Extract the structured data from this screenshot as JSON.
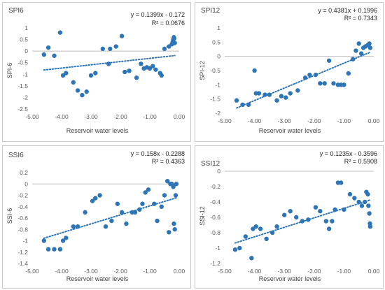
{
  "chart_data": [
    {
      "type": "scatter",
      "title": "SPI6",
      "equation": "y = 0.1399x - 0.172",
      "r2_text": "R² = 0.0676",
      "xlabel": "Reservoir water levels",
      "ylabel": "SPI-6",
      "xlim": [
        -5,
        0
      ],
      "ylim": [
        -2.5,
        1
      ],
      "xticks": [
        -5,
        -4,
        -3,
        -2,
        -1,
        0
      ],
      "xtick_labels": [
        "-5.00",
        "-4.00",
        "-3.00",
        "-2.00",
        "-1.00",
        "0.00"
      ],
      "yticks": [
        -2.5,
        -2,
        -1.5,
        -1,
        -0.5,
        0,
        0.5,
        1
      ],
      "ytick_labels": [
        "-2.5",
        "-2",
        "-1.5",
        "-1",
        "-0.5",
        "0",
        "0.5",
        "1"
      ],
      "trendline": {
        "slope": 0.1399,
        "intercept": -0.172
      },
      "x": [
        -4.6,
        -4.45,
        -4.25,
        -4.05,
        -3.95,
        -3.85,
        -3.6,
        -3.45,
        -3.3,
        -3.15,
        -3.0,
        -2.85,
        -2.6,
        -2.4,
        -2.35,
        -2.15,
        -1.95,
        -1.85,
        -1.7,
        -1.45,
        -1.3,
        -1.2,
        -1.1,
        -1.0,
        -0.9,
        -0.8,
        -0.65,
        -0.6,
        -0.5,
        -0.35,
        -0.25,
        -0.22,
        -0.2,
        -0.18,
        -0.17,
        -0.15
      ],
      "y": [
        -0.15,
        0.15,
        -0.2,
        0.8,
        -1.05,
        -0.95,
        -1.35,
        -1.7,
        -1.9,
        -1.75,
        -1.05,
        -0.95,
        0.1,
        -0.55,
        0.1,
        0.2,
        0.65,
        -0.9,
        -0.85,
        -1.15,
        -0.55,
        -0.75,
        -0.7,
        -0.75,
        -0.65,
        -0.8,
        -0.95,
        -1.05,
        0.1,
        0.2,
        0.3,
        0.4,
        0.5,
        0.6,
        0.55,
        0.35
      ]
    },
    {
      "type": "scatter",
      "title": "SPI12",
      "equation": "y = 0.4381x + 0.1996",
      "r2_text": "R² = 0.7343",
      "xlabel": "Reservoir water levels",
      "ylabel": "SPI-12",
      "xlim": [
        -5,
        0
      ],
      "ylim": [
        -2,
        1
      ],
      "xticks": [
        -5,
        -4,
        -3,
        -2,
        -1,
        0
      ],
      "xtick_labels": [
        "-5.00",
        "-4.00",
        "-3.00",
        "-2.00",
        "-1.00",
        "0.00"
      ],
      "yticks": [
        -2,
        -1.5,
        -1,
        -0.5,
        0,
        0.5,
        1
      ],
      "ytick_labels": [
        "-2",
        "-1.5",
        "-1",
        "-0.5",
        "0",
        "0.5",
        "1"
      ],
      "trendline": {
        "slope": 0.4381,
        "intercept": 0.1996
      },
      "x": [
        -4.6,
        -4.4,
        -4.2,
        -4.0,
        -3.95,
        -3.85,
        -3.65,
        -3.5,
        -3.25,
        -3.1,
        -2.95,
        -2.8,
        -2.55,
        -2.3,
        -2.15,
        -1.95,
        -1.8,
        -1.65,
        -1.5,
        -1.35,
        -1.2,
        -1.1,
        -1.0,
        -0.85,
        -0.7,
        -0.6,
        -0.5,
        -0.42,
        -0.35,
        -0.28,
        -0.2,
        -0.15,
        -0.12
      ],
      "y": [
        -1.55,
        -1.7,
        -1.7,
        -0.5,
        -1.3,
        -1.3,
        -1.35,
        -1.35,
        -1.55,
        -1.4,
        -1.45,
        -1.3,
        -1.2,
        -0.75,
        -0.65,
        -0.65,
        -0.95,
        -0.95,
        -0.15,
        -0.95,
        -1.0,
        -1.0,
        -1.0,
        -0.6,
        -0.1,
        0.2,
        0.45,
        0.1,
        0.3,
        0.35,
        0.4,
        0.45,
        0.3
      ]
    },
    {
      "type": "scatter",
      "title": "SSI6",
      "equation": "y = 0.158x - 0.2288",
      "r2_text": "R² = 0.4363",
      "xlabel": "Reservoir water levels",
      "ylabel": "SSI-6",
      "xlim": [
        -5,
        0
      ],
      "ylim": [
        -1.4,
        0.2
      ],
      "xticks": [
        -5,
        -4,
        -3,
        -2,
        -1,
        0
      ],
      "xtick_labels": [
        "-5.00",
        "-4.00",
        "-3.00",
        "-2.00",
        "-1.00",
        "0.00"
      ],
      "yticks": [
        -1.4,
        -1.2,
        -1,
        -0.8,
        -0.6,
        -0.4,
        -0.2,
        0,
        0.2
      ],
      "ytick_labels": [
        "-1.4",
        "-1.2",
        "-1",
        "-0.8",
        "-0.6",
        "-0.4",
        "-0.2",
        "0",
        "0.2"
      ],
      "trendline": {
        "slope": 0.158,
        "intercept": -0.2288
      },
      "x": [
        -4.6,
        -4.45,
        -4.25,
        -4.05,
        -3.95,
        -3.85,
        -3.6,
        -3.45,
        -3.2,
        -2.95,
        -2.85,
        -2.7,
        -2.5,
        -2.3,
        -2.1,
        -1.95,
        -1.8,
        -1.6,
        -1.5,
        -1.35,
        -1.25,
        -1.15,
        -1.05,
        -0.85,
        -0.75,
        -0.6,
        -0.5,
        -0.4,
        -0.35,
        -0.3,
        -0.25,
        -0.2,
        -0.18,
        -0.15,
        -0.12,
        -0.1
      ],
      "y": [
        -1.0,
        -1.15,
        -1.15,
        -1.15,
        -1.0,
        -0.95,
        -0.75,
        -0.75,
        -0.5,
        -0.3,
        -0.25,
        -0.2,
        -0.75,
        -0.65,
        -0.35,
        -0.5,
        -0.7,
        -0.5,
        -0.5,
        -0.45,
        -0.35,
        -0.15,
        -0.1,
        -0.35,
        -0.65,
        -0.4,
        -0.2,
        0.05,
        -0.85,
        0.0,
        0.0,
        -0.05,
        -0.7,
        -0.8,
        -0.2,
        0.0
      ]
    },
    {
      "type": "scatter",
      "title": "SSI12",
      "equation": "y = 0.1235x - 0.3596",
      "r2_text": "R² = 0.5908",
      "xlabel": "Reservoir water levels",
      "ylabel": "SSI-12",
      "xlim": [
        -5,
        0
      ],
      "ylim": [
        -1.2,
        0
      ],
      "xticks": [
        -5,
        -4,
        -3,
        -2,
        -1,
        0
      ],
      "xtick_labels": [
        "-5.00",
        "-4.00",
        "-3.00",
        "-2.00",
        "-1.00",
        "0.00"
      ],
      "yticks": [
        -1.2,
        -1,
        -0.8,
        -0.6,
        -0.4,
        -0.2,
        0
      ],
      "ytick_labels": [
        "-1.2",
        "-1",
        "-0.8",
        "-0.6",
        "-0.4",
        "-0.2",
        "0"
      ],
      "trendline": {
        "slope": 0.1235,
        "intercept": -0.3596
      },
      "x": [
        -4.65,
        -4.5,
        -4.3,
        -4.1,
        -4.05,
        -3.95,
        -3.8,
        -3.6,
        -3.4,
        -3.25,
        -3.0,
        -2.8,
        -2.6,
        -2.4,
        -2.2,
        -1.95,
        -1.8,
        -1.6,
        -1.5,
        -1.4,
        -1.3,
        -1.2,
        -1.1,
        -1.0,
        -0.8,
        -0.65,
        -0.5,
        -0.4,
        -0.3,
        -0.25,
        -0.2,
        -0.18,
        -0.15,
        -0.13,
        -0.12
      ],
      "y": [
        -1.02,
        -1.0,
        -0.85,
        -1.13,
        -0.75,
        -0.72,
        -0.75,
        -0.88,
        -0.8,
        -0.72,
        -0.57,
        -0.52,
        -0.6,
        -0.65,
        -0.63,
        -0.47,
        -0.52,
        -0.65,
        -0.75,
        -0.65,
        -0.5,
        -0.15,
        -0.15,
        -0.5,
        -0.3,
        -0.35,
        -0.4,
        -0.45,
        -0.4,
        -0.27,
        -0.3,
        -0.45,
        -0.55,
        -0.68,
        -0.72
      ]
    }
  ],
  "colors": {
    "marker": "#2e75b6",
    "trendline": "#2e75b6",
    "axis": "#bfbfbf",
    "tick_text": "#595959"
  }
}
